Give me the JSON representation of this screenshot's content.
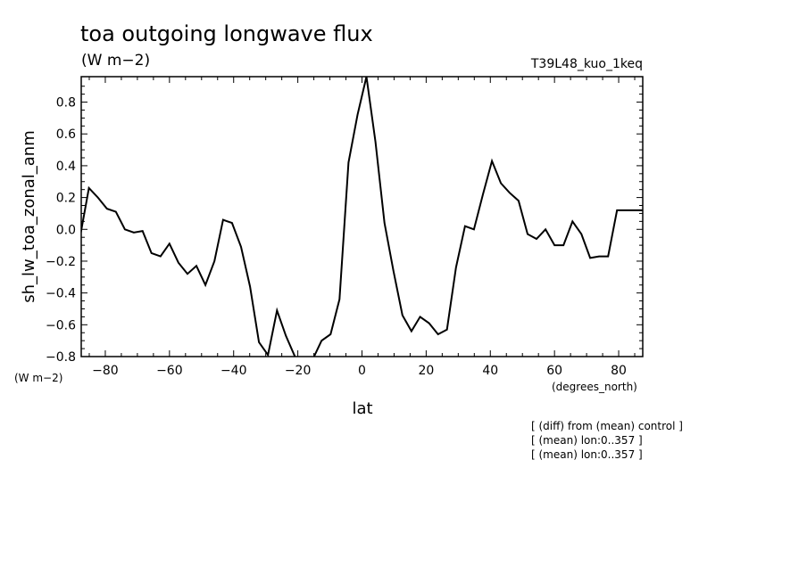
{
  "chart_data": {
    "type": "line",
    "title": "toa outgoing longwave flux",
    "subtitle": "(W m−2)",
    "run_label": "T39L48_kuo_1keq",
    "ylabel": "sh_lw_toa_zonal_anm",
    "ylabel_units": "(W m−2)",
    "xlabel": "lat",
    "xlabel_units": "(degrees_north)",
    "xlim": [
      -87.5,
      87.5
    ],
    "ylim": [
      -0.8,
      0.96
    ],
    "x_ticks": [
      -80,
      -60,
      -40,
      -20,
      0,
      20,
      40,
      60,
      80
    ],
    "x_tick_labels": [
      "−80",
      "−60",
      "−40",
      "−20",
      "0",
      "20",
      "40",
      "60",
      "80"
    ],
    "y_ticks": [
      -0.8,
      -0.6,
      -0.4,
      -0.2,
      0.0,
      0.2,
      0.4,
      0.6,
      0.8
    ],
    "y_tick_labels": [
      "−0.8",
      "−0.6",
      "−0.4",
      "−0.2",
      "0.0",
      "0.2",
      "0.4",
      "0.6",
      "0.8"
    ],
    "grid": false,
    "series": [
      {
        "color": "#000000",
        "x": [
          -87.9,
          -85.1,
          -82.3,
          -79.5,
          -76.7,
          -73.9,
          -71.1,
          -68.4,
          -65.6,
          -62.8,
          -60.0,
          -57.2,
          -54.4,
          -51.6,
          -48.8,
          -46.0,
          -43.3,
          -40.5,
          -37.7,
          -34.9,
          -32.1,
          -29.3,
          -26.5,
          -23.7,
          -20.9,
          -18.1,
          -15.4,
          -12.6,
          -9.8,
          -7.0,
          -4.2,
          -1.4,
          1.4,
          4.2,
          7.0,
          9.8,
          12.6,
          15.4,
          18.1,
          20.9,
          23.7,
          26.5,
          29.3,
          32.1,
          34.9,
          37.7,
          40.5,
          43.3,
          46.0,
          48.8,
          51.6,
          54.4,
          57.2,
          60.0,
          62.8,
          65.6,
          68.4,
          71.1,
          73.9,
          76.7,
          79.5,
          82.3,
          85.1,
          87.9
        ],
        "y": [
          -0.05,
          0.26,
          0.2,
          0.13,
          0.11,
          0.0,
          -0.02,
          -0.01,
          -0.15,
          -0.17,
          -0.09,
          -0.21,
          -0.28,
          -0.23,
          -0.35,
          -0.2,
          0.06,
          0.04,
          -0.11,
          -0.36,
          -0.71,
          -0.79,
          -0.51,
          -0.67,
          -0.8,
          -0.9,
          -0.82,
          -0.7,
          -0.66,
          -0.44,
          0.42,
          0.72,
          0.96,
          0.55,
          0.04,
          -0.26,
          -0.54,
          -0.64,
          -0.55,
          -0.59,
          -0.66,
          -0.63,
          -0.24,
          0.02,
          0.0,
          0.22,
          0.43,
          0.29,
          0.23,
          0.18,
          -0.03,
          -0.06,
          0.0,
          -0.1,
          -0.1,
          0.05,
          -0.03,
          -0.18,
          -0.17,
          -0.17,
          0.12,
          0.12,
          0.12,
          0.12
        ]
      }
    ],
    "notes": [
      "[ (diff) from (mean) control ]",
      "[ (mean) lon:0..357 ]",
      "[ (mean) lon:0..357 ]"
    ]
  }
}
